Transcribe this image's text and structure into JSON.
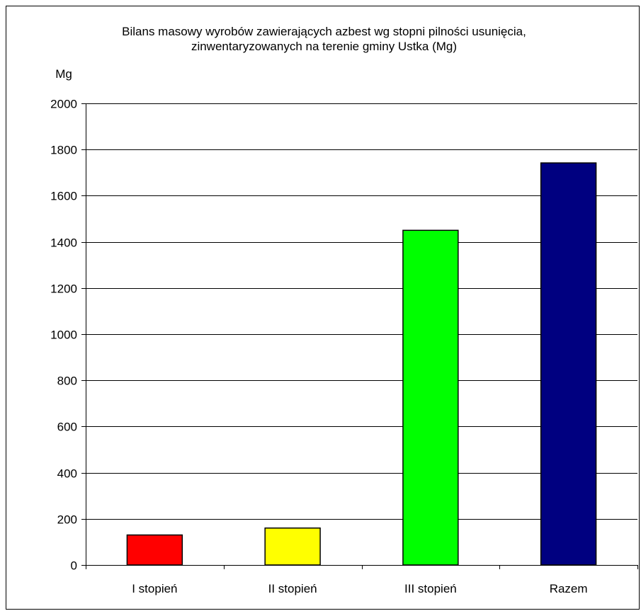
{
  "chart_data": {
    "type": "bar",
    "title_lines": [
      "Bilans masowy wyrobów zawierających azbest wg stopni pilności usunięcia,",
      "zinwentaryzowanych na terenie gminy Ustka (Mg)"
    ],
    "ylabel": "Mg",
    "xlabel": "",
    "ylim": [
      0,
      2000
    ],
    "yticks": [
      0,
      200,
      400,
      600,
      800,
      1000,
      1200,
      1400,
      1600,
      1800,
      2000
    ],
    "grid": true,
    "categories": [
      "I stopień",
      "II stopień",
      "III stopień",
      "Razem"
    ],
    "values": [
      130,
      160,
      1450,
      1742
    ],
    "colors": [
      "#ff0000",
      "#ffff00",
      "#00ff00",
      "#000080"
    ]
  }
}
